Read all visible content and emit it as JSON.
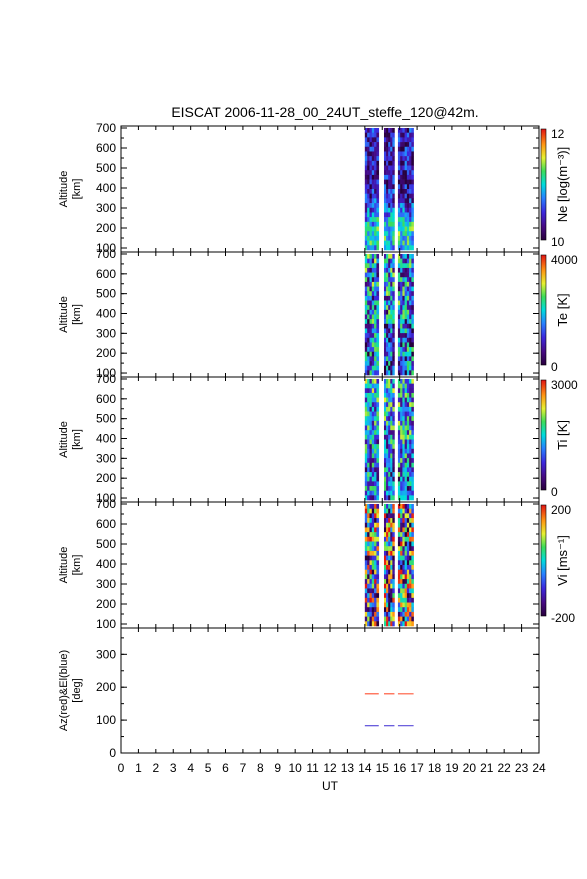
{
  "chart_data": {
    "type": "heatmap",
    "title": "EISCAT 2006-11-28_00_24UT_steffe_120@42m.",
    "xlabel": "UT",
    "xlim": [
      0,
      24
    ],
    "x_ticks": [
      "0",
      "1",
      "2",
      "3",
      "4",
      "5",
      "6",
      "7",
      "8",
      "9",
      "10",
      "11",
      "12",
      "13",
      "14",
      "15",
      "16",
      "17",
      "18",
      "19",
      "20",
      "21",
      "22",
      "23",
      "24"
    ],
    "data_coverage_ut": [
      [
        14.0,
        14.8
      ],
      [
        15.1,
        15.7
      ],
      [
        15.9,
        16.8
      ]
    ],
    "panels": [
      {
        "ylabel": [
          "Altitude",
          "[km]"
        ],
        "ylim": [
          80,
          710
        ],
        "y_ticks": [
          "100",
          "200",
          "300",
          "400",
          "500",
          "600",
          "700"
        ],
        "colorbar": {
          "label": "Ne [log(m⁻³)]",
          "max": "12",
          "min": "10"
        }
      },
      {
        "ylabel": [
          "Altitude",
          "[km]"
        ],
        "ylim": [
          80,
          710
        ],
        "y_ticks": [
          "100",
          "200",
          "300",
          "400",
          "500",
          "600",
          "700"
        ],
        "colorbar": {
          "label": "Te [K]",
          "max": "4000",
          "min": "0"
        }
      },
      {
        "ylabel": [
          "Altitude",
          "[km]"
        ],
        "ylim": [
          80,
          710
        ],
        "y_ticks": [
          "100",
          "200",
          "300",
          "400",
          "500",
          "600",
          "700"
        ],
        "colorbar": {
          "label": "Ti [K]",
          "max": "3000",
          "min": "0"
        }
      },
      {
        "ylabel": [
          "Altitude",
          "[km]"
        ],
        "ylim": [
          80,
          710
        ],
        "y_ticks": [
          "100",
          "200",
          "300",
          "400",
          "500",
          "600",
          "700"
        ],
        "colorbar": {
          "label": "Vi [ms⁻¹]",
          "max": "200",
          "min": "-200"
        }
      },
      {
        "ylabel": [
          "Az(red)&El(blue)",
          "[deg]"
        ],
        "ylim": [
          0,
          380
        ],
        "y_ticks": [
          "0",
          "100",
          "200",
          "300"
        ],
        "series": [
          {
            "color": "#ff5a3c",
            "x": [
              14.0,
              16.8
            ],
            "y": [
              180,
              180
            ]
          },
          {
            "color": "#5a4cd8",
            "x": [
              14.0,
              16.8
            ],
            "y": [
              83,
              83
            ]
          }
        ]
      }
    ]
  }
}
